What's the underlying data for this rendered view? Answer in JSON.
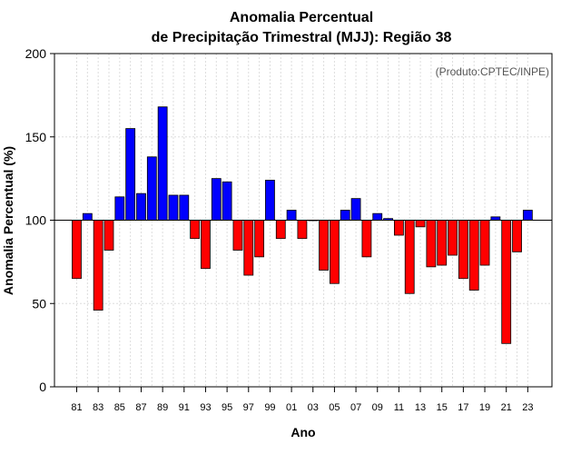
{
  "chart_data": {
    "type": "bar",
    "title": "Anomalia Percentual",
    "subtitle": "de Precipitação Trimestral (MJJ): Região 38",
    "xlabel": "Ano",
    "ylabel": "Anomalia Percentual (%)",
    "credit": "(Produto:CPTEC/INPE)",
    "ylim": [
      0,
      200
    ],
    "yticks": [
      "0",
      "50",
      "100",
      "150",
      "200"
    ],
    "ytick_values": [
      0,
      50,
      100,
      150,
      200
    ],
    "baseline": 100,
    "grid": true,
    "colors": {
      "above": "#0000ff",
      "below": "#ff0000",
      "edge": "#000000"
    },
    "categories": [
      1981,
      1982,
      1983,
      1984,
      1985,
      1986,
      1987,
      1988,
      1989,
      1990,
      1991,
      1992,
      1993,
      1994,
      1995,
      1996,
      1997,
      1998,
      1999,
      2000,
      2001,
      2002,
      2003,
      2004,
      2005,
      2006,
      2007,
      2008,
      2009,
      2010,
      2011,
      2012,
      2013,
      2014,
      2015,
      2016,
      2017,
      2018,
      2019,
      2020,
      2021,
      2022,
      2023
    ],
    "xtick_labels": [
      "81",
      "83",
      "85",
      "87",
      "89",
      "91",
      "93",
      "95",
      "97",
      "99",
      "01",
      "03",
      "05",
      "07",
      "09",
      "11",
      "13",
      "15",
      "17",
      "19",
      "21",
      "23"
    ],
    "values": [
      65,
      104,
      46,
      82,
      114,
      155,
      116,
      138,
      168,
      115,
      115,
      89,
      71,
      125,
      123,
      82,
      67,
      78,
      124,
      89,
      106,
      89,
      100,
      70,
      62,
      106,
      113,
      78,
      104,
      101,
      91,
      56,
      96,
      72,
      73,
      79,
      65,
      58,
      73,
      102,
      26,
      81,
      106
    ]
  }
}
